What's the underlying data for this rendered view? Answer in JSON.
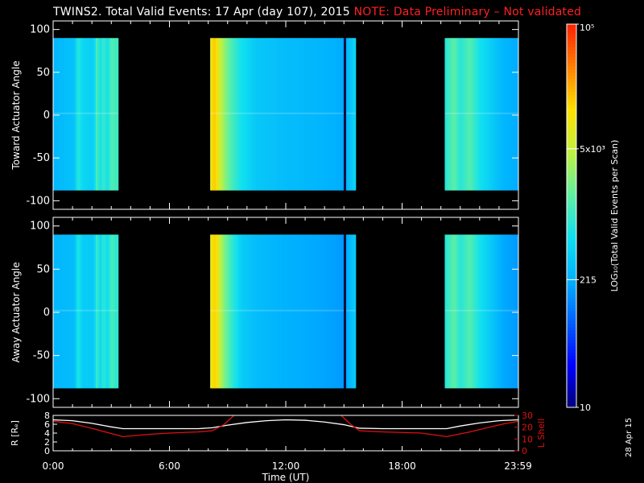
{
  "title": {
    "main": "TWINS2. Total Valid Events: 17 Apr (day 107), 2015",
    "note": "NOTE: Data Preliminary – Not validated"
  },
  "stamp": "28 Apr 15",
  "colors": {
    "background": "#000000",
    "axes": "#ffffff",
    "note_text": "#ff2020",
    "r_line": "#ffffff",
    "lshell_line": "#e01010"
  },
  "chart_data": [
    {
      "type": "heatmap",
      "panel": "top",
      "ylabel": "Toward Actuator Angle",
      "ylim": [
        -110,
        110
      ],
      "yticks": [
        "100",
        "50",
        "0",
        "-50",
        "-100"
      ],
      "ytick_values": [
        100,
        50,
        0,
        -50,
        -100
      ],
      "angle_range": [
        -88,
        90
      ],
      "xlim": [
        0,
        24
      ],
      "time_units": "hours UT",
      "log_scale": true,
      "data_segments": [
        {
          "start": 0.0,
          "end": 3.35
        },
        {
          "start": 8.1,
          "end": 15.6
        },
        {
          "start": 20.2,
          "end": 24.0
        }
      ],
      "log10_counts_profile": [
        {
          "t": 0.0,
          "v": 2.4
        },
        {
          "t": 1.1,
          "v": 2.5
        },
        {
          "t": 1.3,
          "v": 2.95
        },
        {
          "t": 1.5,
          "v": 2.7
        },
        {
          "t": 2.1,
          "v": 2.6
        },
        {
          "t": 2.25,
          "v": 3.1
        },
        {
          "t": 2.45,
          "v": 2.8
        },
        {
          "t": 2.6,
          "v": 3.05
        },
        {
          "t": 2.8,
          "v": 2.75
        },
        {
          "t": 3.0,
          "v": 3.15
        },
        {
          "t": 3.35,
          "v": 3.0
        },
        {
          "t": 8.1,
          "v": 3.8
        },
        {
          "t": 8.3,
          "v": 4.3
        },
        {
          "t": 8.5,
          "v": 3.9
        },
        {
          "t": 8.8,
          "v": 3.5
        },
        {
          "t": 9.2,
          "v": 3.1
        },
        {
          "t": 9.7,
          "v": 2.8
        },
        {
          "t": 10.5,
          "v": 2.55
        },
        {
          "t": 12.0,
          "v": 2.45
        },
        {
          "t": 13.5,
          "v": 2.4
        },
        {
          "t": 14.5,
          "v": 2.35
        },
        {
          "t": 15.0,
          "v": 2.3
        },
        {
          "t": 15.6,
          "v": 2.7
        },
        {
          "t": 20.2,
          "v": 2.9
        },
        {
          "t": 20.7,
          "v": 3.2
        },
        {
          "t": 21.0,
          "v": 2.9
        },
        {
          "t": 21.5,
          "v": 3.15
        },
        {
          "t": 22.0,
          "v": 2.8
        },
        {
          "t": 22.6,
          "v": 2.6
        },
        {
          "t": 23.2,
          "v": 2.4
        },
        {
          "t": 24.0,
          "v": 2.3
        }
      ],
      "dark_lines": [
        15.05
      ]
    },
    {
      "type": "heatmap",
      "panel": "middle",
      "ylabel": "Away Actuator Angle",
      "ylim": [
        -110,
        110
      ],
      "yticks": [
        "100",
        "50",
        "0",
        "-50",
        "-100"
      ],
      "ytick_values": [
        100,
        50,
        0,
        -50,
        -100
      ],
      "angle_range": [
        -88,
        90
      ],
      "xlim": [
        0,
        24
      ],
      "time_units": "hours UT",
      "log_scale": true,
      "data_segments": [
        {
          "start": 0.0,
          "end": 3.35
        },
        {
          "start": 8.1,
          "end": 15.6
        },
        {
          "start": 20.2,
          "end": 24.0
        }
      ],
      "log10_counts_profile": [
        {
          "t": 0.0,
          "v": 2.4
        },
        {
          "t": 1.1,
          "v": 2.45
        },
        {
          "t": 1.3,
          "v": 2.9
        },
        {
          "t": 1.5,
          "v": 2.6
        },
        {
          "t": 2.1,
          "v": 2.55
        },
        {
          "t": 2.25,
          "v": 3.0
        },
        {
          "t": 2.45,
          "v": 2.7
        },
        {
          "t": 2.6,
          "v": 3.0
        },
        {
          "t": 2.8,
          "v": 2.7
        },
        {
          "t": 3.0,
          "v": 3.1
        },
        {
          "t": 3.35,
          "v": 2.9
        },
        {
          "t": 8.1,
          "v": 3.8
        },
        {
          "t": 8.3,
          "v": 4.25
        },
        {
          "t": 8.5,
          "v": 3.9
        },
        {
          "t": 8.8,
          "v": 3.4
        },
        {
          "t": 9.2,
          "v": 3.0
        },
        {
          "t": 9.7,
          "v": 2.6
        },
        {
          "t": 10.5,
          "v": 2.45
        },
        {
          "t": 12.0,
          "v": 2.35
        },
        {
          "t": 13.5,
          "v": 2.3
        },
        {
          "t": 14.5,
          "v": 2.25
        },
        {
          "t": 15.0,
          "v": 2.2
        },
        {
          "t": 15.6,
          "v": 2.6
        },
        {
          "t": 20.2,
          "v": 2.9
        },
        {
          "t": 20.7,
          "v": 3.2
        },
        {
          "t": 21.0,
          "v": 2.9
        },
        {
          "t": 21.5,
          "v": 3.15
        },
        {
          "t": 22.0,
          "v": 2.8
        },
        {
          "t": 22.6,
          "v": 2.55
        },
        {
          "t": 23.2,
          "v": 2.3
        },
        {
          "t": 24.0,
          "v": 2.2
        }
      ],
      "dark_lines": [
        15.05
      ]
    },
    {
      "type": "line",
      "panel": "bottom",
      "xlabel": "Time (UT)",
      "xticks": [
        "0:00",
        "6:00",
        "12:00",
        "18:00",
        "23:59"
      ],
      "xtick_values": [
        0,
        6,
        12,
        18,
        23.98
      ],
      "xlim": [
        0,
        24
      ],
      "left_axis": {
        "label": "R [Rₑ]",
        "ylim": [
          0,
          8
        ],
        "yticks": [
          "0",
          "2",
          "4",
          "6",
          "8"
        ],
        "ytick_values": [
          0,
          2,
          4,
          6,
          8
        ]
      },
      "right_axis": {
        "label": "L Shell",
        "ylim": [
          0,
          30
        ],
        "yticks": [
          "0",
          "10",
          "20",
          "30"
        ],
        "ytick_values": [
          0,
          10,
          20,
          30
        ],
        "color": "#e01010"
      },
      "series": [
        {
          "axis": "left",
          "x": [
            0,
            1,
            2,
            3,
            3.6,
            4.5,
            6,
            7.5,
            8.2,
            9,
            10,
            11,
            12,
            13,
            14,
            15,
            15.8,
            17,
            18,
            19,
            20.3,
            21,
            22,
            23,
            24
          ],
          "y": [
            7.0,
            6.8,
            6.2,
            5.4,
            5.0,
            5.0,
            5.0,
            5.0,
            5.2,
            5.8,
            6.4,
            6.8,
            7.0,
            6.9,
            6.5,
            5.9,
            5.1,
            5.0,
            5.0,
            5.0,
            5.0,
            5.6,
            6.3,
            6.8,
            7.0
          ]
        },
        {
          "axis": "right",
          "x": [
            0,
            1,
            2,
            3.6,
            5,
            6,
            7.5,
            8.2,
            8.8,
            9.4,
            14.8,
            15.3,
            15.8,
            17,
            18,
            19,
            20.3,
            21.5,
            22.5,
            23.3,
            24
          ],
          "y": [
            25,
            23,
            19,
            12,
            14,
            15,
            16,
            17,
            22,
            31,
            31,
            23,
            17,
            16,
            15.5,
            15,
            12,
            16,
            20,
            23,
            25
          ]
        }
      ]
    },
    {
      "type": "colorbar",
      "label": "LOG₁₀(Total Valid Events per Scan)",
      "scale": "log",
      "range": [
        10,
        100000
      ],
      "ticks": [
        "10⁵",
        "5x10³",
        "215",
        "10"
      ],
      "tick_values": [
        100000,
        5000,
        215,
        10
      ],
      "colormap": [
        "#00007a",
        "#0000ff",
        "#0060ff",
        "#00b0ff",
        "#10e0f0",
        "#60f0a0",
        "#c0f040",
        "#ffe000",
        "#ff8000",
        "#ff2000"
      ]
    }
  ]
}
